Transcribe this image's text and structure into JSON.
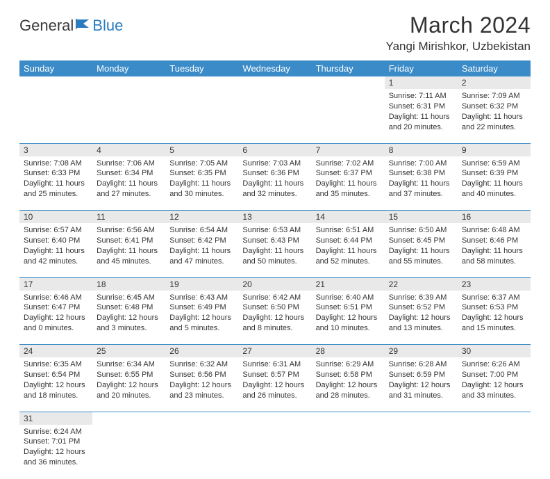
{
  "brand": {
    "part1": "General",
    "part2": "Blue"
  },
  "title": "March 2024",
  "location": "Yangi Mirishkor, Uzbekistan",
  "colors": {
    "header_bg": "#3b8bc8",
    "header_text": "#ffffff",
    "daynum_bg": "#e9e9e9",
    "row_divider": "#3b8bc8",
    "text": "#333333",
    "brand_blue": "#2b7bbf"
  },
  "fonts": {
    "title_size": 32,
    "location_size": 17,
    "weekday_size": 13,
    "daynum_size": 12,
    "body_size": 11
  },
  "weekdays": [
    "Sunday",
    "Monday",
    "Tuesday",
    "Wednesday",
    "Thursday",
    "Friday",
    "Saturday"
  ],
  "weeks": [
    [
      null,
      null,
      null,
      null,
      null,
      {
        "d": "1",
        "sr": "7:11 AM",
        "ss": "6:31 PM",
        "dl": "11 hours and 20 minutes."
      },
      {
        "d": "2",
        "sr": "7:09 AM",
        "ss": "6:32 PM",
        "dl": "11 hours and 22 minutes."
      }
    ],
    [
      {
        "d": "3",
        "sr": "7:08 AM",
        "ss": "6:33 PM",
        "dl": "11 hours and 25 minutes."
      },
      {
        "d": "4",
        "sr": "7:06 AM",
        "ss": "6:34 PM",
        "dl": "11 hours and 27 minutes."
      },
      {
        "d": "5",
        "sr": "7:05 AM",
        "ss": "6:35 PM",
        "dl": "11 hours and 30 minutes."
      },
      {
        "d": "6",
        "sr": "7:03 AM",
        "ss": "6:36 PM",
        "dl": "11 hours and 32 minutes."
      },
      {
        "d": "7",
        "sr": "7:02 AM",
        "ss": "6:37 PM",
        "dl": "11 hours and 35 minutes."
      },
      {
        "d": "8",
        "sr": "7:00 AM",
        "ss": "6:38 PM",
        "dl": "11 hours and 37 minutes."
      },
      {
        "d": "9",
        "sr": "6:59 AM",
        "ss": "6:39 PM",
        "dl": "11 hours and 40 minutes."
      }
    ],
    [
      {
        "d": "10",
        "sr": "6:57 AM",
        "ss": "6:40 PM",
        "dl": "11 hours and 42 minutes."
      },
      {
        "d": "11",
        "sr": "6:56 AM",
        "ss": "6:41 PM",
        "dl": "11 hours and 45 minutes."
      },
      {
        "d": "12",
        "sr": "6:54 AM",
        "ss": "6:42 PM",
        "dl": "11 hours and 47 minutes."
      },
      {
        "d": "13",
        "sr": "6:53 AM",
        "ss": "6:43 PM",
        "dl": "11 hours and 50 minutes."
      },
      {
        "d": "14",
        "sr": "6:51 AM",
        "ss": "6:44 PM",
        "dl": "11 hours and 52 minutes."
      },
      {
        "d": "15",
        "sr": "6:50 AM",
        "ss": "6:45 PM",
        "dl": "11 hours and 55 minutes."
      },
      {
        "d": "16",
        "sr": "6:48 AM",
        "ss": "6:46 PM",
        "dl": "11 hours and 58 minutes."
      }
    ],
    [
      {
        "d": "17",
        "sr": "6:46 AM",
        "ss": "6:47 PM",
        "dl": "12 hours and 0 minutes."
      },
      {
        "d": "18",
        "sr": "6:45 AM",
        "ss": "6:48 PM",
        "dl": "12 hours and 3 minutes."
      },
      {
        "d": "19",
        "sr": "6:43 AM",
        "ss": "6:49 PM",
        "dl": "12 hours and 5 minutes."
      },
      {
        "d": "20",
        "sr": "6:42 AM",
        "ss": "6:50 PM",
        "dl": "12 hours and 8 minutes."
      },
      {
        "d": "21",
        "sr": "6:40 AM",
        "ss": "6:51 PM",
        "dl": "12 hours and 10 minutes."
      },
      {
        "d": "22",
        "sr": "6:39 AM",
        "ss": "6:52 PM",
        "dl": "12 hours and 13 minutes."
      },
      {
        "d": "23",
        "sr": "6:37 AM",
        "ss": "6:53 PM",
        "dl": "12 hours and 15 minutes."
      }
    ],
    [
      {
        "d": "24",
        "sr": "6:35 AM",
        "ss": "6:54 PM",
        "dl": "12 hours and 18 minutes."
      },
      {
        "d": "25",
        "sr": "6:34 AM",
        "ss": "6:55 PM",
        "dl": "12 hours and 20 minutes."
      },
      {
        "d": "26",
        "sr": "6:32 AM",
        "ss": "6:56 PM",
        "dl": "12 hours and 23 minutes."
      },
      {
        "d": "27",
        "sr": "6:31 AM",
        "ss": "6:57 PM",
        "dl": "12 hours and 26 minutes."
      },
      {
        "d": "28",
        "sr": "6:29 AM",
        "ss": "6:58 PM",
        "dl": "12 hours and 28 minutes."
      },
      {
        "d": "29",
        "sr": "6:28 AM",
        "ss": "6:59 PM",
        "dl": "12 hours and 31 minutes."
      },
      {
        "d": "30",
        "sr": "6:26 AM",
        "ss": "7:00 PM",
        "dl": "12 hours and 33 minutes."
      }
    ],
    [
      {
        "d": "31",
        "sr": "6:24 AM",
        "ss": "7:01 PM",
        "dl": "12 hours and 36 minutes."
      },
      null,
      null,
      null,
      null,
      null,
      null
    ]
  ],
  "labels": {
    "sunrise": "Sunrise:",
    "sunset": "Sunset:",
    "daylight": "Daylight:"
  }
}
